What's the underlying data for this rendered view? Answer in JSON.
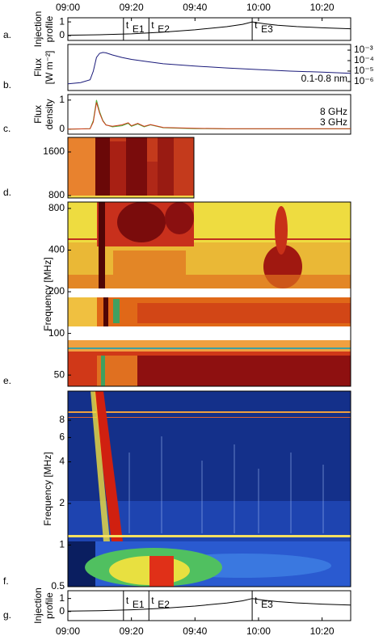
{
  "time_axis": {
    "xlim": [
      0,
      89
    ],
    "xticks": [
      {
        "value": 0,
        "label": "09:00"
      },
      {
        "value": 20,
        "label": "09:20"
      },
      {
        "value": 40,
        "label": "09:40"
      },
      {
        "value": 60,
        "label": "10:00"
      },
      {
        "value": 80,
        "label": "10:20"
      }
    ]
  },
  "chart_data": [
    {
      "type": "line",
      "letter": "a.",
      "ylabel": [
        "Injection",
        "profile"
      ],
      "ylim": [
        -0.35,
        1.3
      ],
      "yticks": [
        0,
        1
      ],
      "x": [
        0,
        10,
        20,
        30,
        40,
        50,
        55,
        58,
        62,
        66,
        72,
        80,
        89
      ],
      "series": [
        {
          "color": "#000000",
          "values": [
            0.03,
            0.06,
            0.13,
            0.25,
            0.42,
            0.65,
            0.82,
            1.0,
            0.86,
            0.76,
            0.66,
            0.57,
            0.5
          ]
        }
      ],
      "events": [
        {
          "t": "t",
          "sub": "E1",
          "x": 17.5
        },
        {
          "t": "t",
          "sub": "E2",
          "x": 25.5
        },
        {
          "t": "t",
          "sub": "E3",
          "x": 58
        }
      ]
    },
    {
      "type": "line",
      "letter": "b.",
      "ylabel": [
        "Flux",
        "[W m⁻²]"
      ],
      "scale": "log",
      "yaxis_side": "right",
      "ylim": [
        1.4e-07,
        0.0035
      ],
      "yticks": [
        {
          "value": 0.001,
          "label": "10⁻³"
        },
        {
          "value": 0.0001,
          "label": "10⁻⁴"
        },
        {
          "value": 1e-05,
          "label": "10⁻⁵"
        },
        {
          "value": 1e-06,
          "label": "10⁻⁶"
        }
      ],
      "x": [
        0,
        4,
        7,
        8,
        9,
        10,
        11,
        12,
        14,
        17,
        20,
        25,
        30,
        40,
        50,
        60,
        70,
        80,
        89
      ],
      "series": [
        {
          "name": "0.1-0.8 nm",
          "color": "#1a1a7a",
          "values": [
            6e-07,
            8e-07,
            1.5e-06,
            1e-05,
            0.0002,
            0.0005,
            0.0006,
            0.00055,
            0.00035,
            0.0002,
            0.00013,
            8e-05,
            5e-05,
            3e-05,
            2e-05,
            1.4e-05,
            1e-05,
            8e-06,
            6e-06
          ]
        }
      ]
    },
    {
      "type": "line",
      "letter": "c.",
      "ylabel": [
        "Flux",
        "density"
      ],
      "ylim": [
        -0.17,
        1.19
      ],
      "yticks": [
        0,
        1
      ],
      "x": [
        0,
        7,
        8,
        9,
        10,
        11,
        12,
        14,
        17,
        19,
        20,
        22,
        24,
        26,
        30,
        40,
        50,
        89
      ],
      "series": [
        {
          "name": "8 GHz",
          "color": "#4caf3a",
          "values": [
            0,
            0.02,
            0.3,
            1.0,
            0.6,
            0.3,
            0.15,
            0.08,
            0.12,
            0.2,
            0.1,
            0.18,
            0.08,
            0.15,
            0.05,
            0.02,
            0.01,
            0.01
          ]
        },
        {
          "name": "3 GHz",
          "color": "#d03a1a",
          "values": [
            0,
            0.02,
            0.25,
            0.92,
            0.55,
            0.28,
            0.14,
            0.1,
            0.15,
            0.22,
            0.12,
            0.2,
            0.1,
            0.16,
            0.06,
            0.03,
            0.02,
            0.02
          ]
        }
      ]
    },
    {
      "type": "heatmap",
      "letter": "d.",
      "ylim": [
        756,
        1867
      ],
      "yticks": [
        1600,
        800
      ]
    },
    {
      "type": "heatmap",
      "letter": "e.",
      "ylabel": [
        "Frequency [MHz]"
      ],
      "scale": "log",
      "ylim": [
        41.5,
        890
      ],
      "yticks": [
        800,
        400,
        200,
        100,
        50
      ]
    },
    {
      "type": "heatmap",
      "letter": "f.",
      "ylabel": [
        "Frequency [MHz]"
      ],
      "scale": "log",
      "ylim": [
        0.5,
        13
      ],
      "yticks": [
        8,
        6,
        4,
        2,
        1,
        0.5
      ]
    },
    {
      "type": "line",
      "letter": "g.",
      "ylabel": [
        "Injection",
        "profile"
      ],
      "ylim": [
        -0.7,
        1.6
      ],
      "yticks": [
        0,
        1
      ],
      "x": [
        0,
        10,
        20,
        30,
        40,
        50,
        55,
        58,
        62,
        66,
        72,
        80,
        89
      ],
      "series": [
        {
          "color": "#000000",
          "values": [
            0.03,
            0.06,
            0.13,
            0.25,
            0.42,
            0.65,
            0.82,
            1.0,
            0.86,
            0.76,
            0.66,
            0.57,
            0.5
          ]
        }
      ],
      "events": [
        {
          "t": "t",
          "sub": "E1",
          "x": 17.5
        },
        {
          "t": "t",
          "sub": "E2",
          "x": 25.5
        },
        {
          "t": "t",
          "sub": "E3",
          "x": 58
        }
      ]
    }
  ]
}
